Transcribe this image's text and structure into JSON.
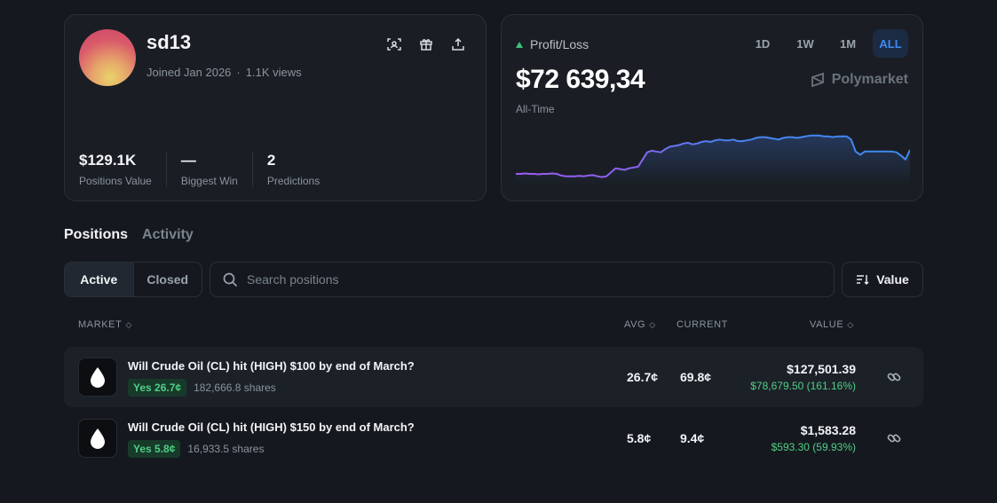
{
  "profile": {
    "username": "sd13",
    "joined": "Joined Jan 2026",
    "separator": "·",
    "views": "1.1K views",
    "stats": [
      {
        "value": "$129.1K",
        "label": "Positions Value"
      },
      {
        "value": "—",
        "label": "Biggest Win"
      },
      {
        "value": "2",
        "label": "Predictions"
      }
    ]
  },
  "pnl": {
    "label": "Profit/Loss",
    "amount": "$72 639,34",
    "period": "All-Time",
    "ranges": [
      "1D",
      "1W",
      "1M",
      "ALL"
    ],
    "active_range": "ALL",
    "brand": "Polymarket",
    "up_color": "#3fc07a",
    "accent": "#3d8bf0",
    "series": [
      50,
      50,
      50.5,
      50,
      50,
      49.5,
      50,
      50,
      50.5,
      50,
      48,
      47,
      47,
      47,
      47.5,
      47,
      48,
      48.5,
      47,
      46,
      47,
      52,
      57,
      56,
      55,
      57,
      58,
      59,
      68,
      77,
      79,
      78,
      77,
      81,
      84,
      85,
      86,
      88,
      89,
      87,
      88,
      90,
      91,
      90,
      92,
      93,
      92,
      92,
      93,
      91,
      91,
      92,
      93,
      95,
      96,
      96,
      95,
      94,
      93,
      95,
      96,
      96,
      95,
      96,
      97,
      98,
      98,
      98,
      97,
      97,
      96,
      97,
      97,
      97,
      93,
      78,
      74,
      78,
      78,
      78,
      78,
      78,
      78,
      78,
      77,
      73,
      68,
      80
    ]
  },
  "tabs": {
    "positions": "Positions",
    "activity": "Activity"
  },
  "filters": {
    "active": "Active",
    "closed": "Closed",
    "search_placeholder": "Search positions",
    "sort_label": "Value"
  },
  "table": {
    "headers": {
      "market": "MARKET",
      "avg": "AVG",
      "current": "CURRENT",
      "value": "VALUE"
    },
    "rows": [
      {
        "title": "Will Crude Oil (CL) hit (HIGH) $100 by end of March?",
        "outcome": "Yes 26.7¢",
        "shares": "182,666.8 shares",
        "avg": "26.7¢",
        "current": "69.8¢",
        "value": "$127,501.39",
        "pnl": "$78,679.50 (161.16%)"
      },
      {
        "title": "Will Crude Oil (CL) hit (HIGH) $150 by end of March?",
        "outcome": "Yes 5.8¢",
        "shares": "16,933.5 shares",
        "avg": "5.8¢",
        "current": "9.4¢",
        "value": "$1,583.28",
        "pnl": "$593.30 (59.93%)"
      }
    ]
  }
}
